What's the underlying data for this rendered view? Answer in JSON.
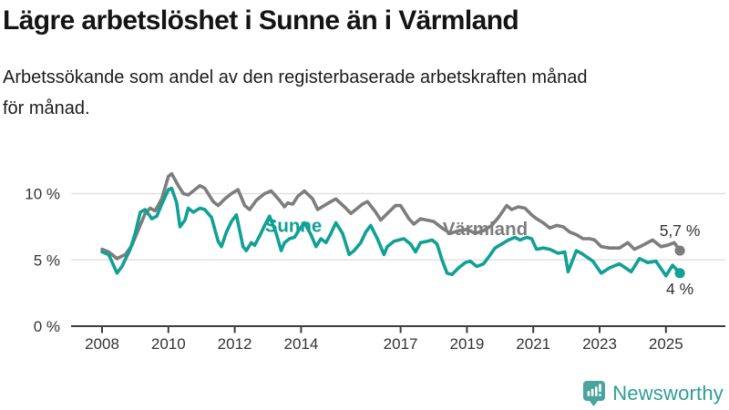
{
  "header": {
    "title": "Lägre arbetslöshet i Sunne än i Värmland",
    "subtitle_lines": [
      "Arbetssökande som andel av den registerbaserade arbetskraften månad",
      "för månad."
    ]
  },
  "footer": {
    "brand": "Newsworthy",
    "logo_icon": "bar-chart-speech-bubble-icon"
  },
  "colors": {
    "sunne": "#10a096",
    "varmland": "#7d7d7d",
    "grid": "#e1e1e1",
    "axis": "#3d3d3d",
    "tick_text": "#333333",
    "end_label_text": "#333333",
    "brand_teal": "#2d9e97",
    "brand_icon": "#4aa49c"
  },
  "chart_data": {
    "type": "line",
    "title": "Lägre arbetslöshet i Sunne än i Värmland",
    "subtitle": "Arbetssökande som andel av den registerbaserade arbetskraften månad för månad.",
    "grid": true,
    "legend_position": "inline-labels",
    "x_axis": {
      "ticks": [
        2008,
        2010,
        2012,
        2014,
        2017,
        2019,
        2021,
        2023,
        2025
      ],
      "range": [
        2007.1,
        2026.8
      ]
    },
    "y_axis": {
      "unit": "%",
      "ticks": [
        {
          "v": 0,
          "label": "0 %"
        },
        {
          "v": 5,
          "label": "5 %"
        },
        {
          "v": 10,
          "label": "10 %"
        }
      ],
      "range": [
        0,
        13.6
      ]
    },
    "series": [
      {
        "name": "Värmland",
        "color": "#7d7d7d",
        "end_label": "5,7 %",
        "end_value": 5.7,
        "label_anchor": {
          "x": 2019.55,
          "y": 7.35
        },
        "points": [
          [
            2008.0,
            5.8
          ],
          [
            2008.2,
            5.6
          ],
          [
            2008.45,
            5.1
          ],
          [
            2008.7,
            5.4
          ],
          [
            2008.9,
            6.1
          ],
          [
            2009.1,
            7.3
          ],
          [
            2009.3,
            8.5
          ],
          [
            2009.45,
            8.9
          ],
          [
            2009.6,
            8.7
          ],
          [
            2009.8,
            9.6
          ],
          [
            2010.0,
            11.3
          ],
          [
            2010.1,
            11.5
          ],
          [
            2010.3,
            10.6
          ],
          [
            2010.45,
            10.0
          ],
          [
            2010.6,
            9.9
          ],
          [
            2010.8,
            10.3
          ],
          [
            2010.95,
            10.6
          ],
          [
            2011.1,
            10.4
          ],
          [
            2011.35,
            9.4
          ],
          [
            2011.5,
            9.1
          ],
          [
            2011.7,
            9.6
          ],
          [
            2011.9,
            10.0
          ],
          [
            2012.1,
            10.3
          ],
          [
            2012.3,
            9.1
          ],
          [
            2012.45,
            8.8
          ],
          [
            2012.65,
            9.5
          ],
          [
            2012.9,
            10.0
          ],
          [
            2013.1,
            10.2
          ],
          [
            2013.35,
            9.5
          ],
          [
            2013.5,
            9.0
          ],
          [
            2013.6,
            9.3
          ],
          [
            2013.75,
            9.2
          ],
          [
            2013.9,
            9.8
          ],
          [
            2014.1,
            10.2
          ],
          [
            2014.35,
            9.6
          ],
          [
            2014.5,
            8.8
          ],
          [
            2014.7,
            9.1
          ],
          [
            2014.9,
            9.4
          ],
          [
            2015.05,
            9.6
          ],
          [
            2015.35,
            8.9
          ],
          [
            2015.5,
            8.5
          ],
          [
            2015.7,
            8.9
          ],
          [
            2015.85,
            9.2
          ],
          [
            2016.0,
            9.4
          ],
          [
            2016.25,
            8.6
          ],
          [
            2016.4,
            8.0
          ],
          [
            2016.6,
            8.5
          ],
          [
            2016.85,
            9.1
          ],
          [
            2017.0,
            9.1
          ],
          [
            2017.25,
            8.1
          ],
          [
            2017.4,
            7.7
          ],
          [
            2017.6,
            8.1
          ],
          [
            2017.8,
            8.0
          ],
          [
            2018.0,
            7.9
          ],
          [
            2018.25,
            7.4
          ],
          [
            2018.5,
            7.0
          ],
          [
            2018.75,
            7.2
          ],
          [
            2019.0,
            7.3
          ],
          [
            2019.25,
            7.0
          ],
          [
            2019.5,
            7.2
          ],
          [
            2019.75,
            7.6
          ],
          [
            2019.95,
            8.2
          ],
          [
            2020.2,
            9.1
          ],
          [
            2020.35,
            8.8
          ],
          [
            2020.55,
            9.0
          ],
          [
            2020.75,
            8.9
          ],
          [
            2020.95,
            8.4
          ],
          [
            2021.1,
            8.1
          ],
          [
            2021.3,
            7.8
          ],
          [
            2021.5,
            7.4
          ],
          [
            2021.7,
            7.6
          ],
          [
            2021.9,
            7.5
          ],
          [
            2022.1,
            7.1
          ],
          [
            2022.3,
            6.9
          ],
          [
            2022.5,
            6.6
          ],
          [
            2022.7,
            6.6
          ],
          [
            2022.85,
            6.5
          ],
          [
            2023.05,
            6.0
          ],
          [
            2023.3,
            5.9
          ],
          [
            2023.6,
            5.9
          ],
          [
            2023.85,
            6.3
          ],
          [
            2024.05,
            5.8
          ],
          [
            2024.3,
            6.1
          ],
          [
            2024.6,
            6.5
          ],
          [
            2024.85,
            6.0
          ],
          [
            2025.05,
            6.1
          ],
          [
            2025.25,
            6.3
          ],
          [
            2025.42,
            5.7
          ]
        ]
      },
      {
        "name": "Sunne",
        "color": "#10a096",
        "end_label": "4 %",
        "end_value": 4.0,
        "label_anchor": {
          "x": 2013.77,
          "y": 7.6
        },
        "points": [
          [
            2008.0,
            5.6
          ],
          [
            2008.2,
            5.4
          ],
          [
            2008.45,
            4.0
          ],
          [
            2008.6,
            4.5
          ],
          [
            2008.85,
            5.8
          ],
          [
            2009.0,
            7.0
          ],
          [
            2009.15,
            8.6
          ],
          [
            2009.3,
            8.8
          ],
          [
            2009.5,
            8.1
          ],
          [
            2009.65,
            8.3
          ],
          [
            2009.8,
            9.2
          ],
          [
            2010.0,
            10.3
          ],
          [
            2010.1,
            10.4
          ],
          [
            2010.25,
            9.3
          ],
          [
            2010.35,
            7.5
          ],
          [
            2010.5,
            8.0
          ],
          [
            2010.6,
            8.9
          ],
          [
            2010.75,
            8.6
          ],
          [
            2010.95,
            8.9
          ],
          [
            2011.1,
            8.8
          ],
          [
            2011.3,
            8.2
          ],
          [
            2011.5,
            6.4
          ],
          [
            2011.6,
            6.0
          ],
          [
            2011.75,
            7.1
          ],
          [
            2011.9,
            7.9
          ],
          [
            2012.05,
            8.4
          ],
          [
            2012.25,
            6.0
          ],
          [
            2012.35,
            5.7
          ],
          [
            2012.5,
            6.3
          ],
          [
            2012.6,
            6.1
          ],
          [
            2012.75,
            6.8
          ],
          [
            2012.9,
            7.6
          ],
          [
            2013.05,
            8.3
          ],
          [
            2013.25,
            7.0
          ],
          [
            2013.4,
            5.7
          ],
          [
            2013.5,
            6.3
          ],
          [
            2013.65,
            6.6
          ],
          [
            2013.8,
            6.7
          ],
          [
            2013.95,
            7.3
          ],
          [
            2014.1,
            7.8
          ],
          [
            2014.3,
            6.9
          ],
          [
            2014.45,
            6.0
          ],
          [
            2014.6,
            6.6
          ],
          [
            2014.75,
            6.3
          ],
          [
            2014.9,
            7.0
          ],
          [
            2015.05,
            7.8
          ],
          [
            2015.25,
            7.0
          ],
          [
            2015.45,
            5.4
          ],
          [
            2015.6,
            5.7
          ],
          [
            2015.8,
            6.3
          ],
          [
            2015.95,
            7.1
          ],
          [
            2016.1,
            7.6
          ],
          [
            2016.3,
            6.6
          ],
          [
            2016.5,
            5.4
          ],
          [
            2016.6,
            6.0
          ],
          [
            2016.8,
            6.4
          ],
          [
            2016.95,
            6.5
          ],
          [
            2017.1,
            6.6
          ],
          [
            2017.3,
            6.2
          ],
          [
            2017.45,
            5.6
          ],
          [
            2017.6,
            6.3
          ],
          [
            2017.8,
            6.4
          ],
          [
            2017.95,
            6.5
          ],
          [
            2018.1,
            6.2
          ],
          [
            2018.25,
            5.0
          ],
          [
            2018.4,
            4.0
          ],
          [
            2018.55,
            3.9
          ],
          [
            2018.75,
            4.4
          ],
          [
            2018.95,
            4.8
          ],
          [
            2019.1,
            4.9
          ],
          [
            2019.3,
            4.5
          ],
          [
            2019.5,
            4.7
          ],
          [
            2019.65,
            5.2
          ],
          [
            2019.85,
            5.9
          ],
          [
            2020.05,
            6.2
          ],
          [
            2020.25,
            6.5
          ],
          [
            2020.45,
            6.7
          ],
          [
            2020.6,
            6.5
          ],
          [
            2020.8,
            6.7
          ],
          [
            2020.95,
            6.6
          ],
          [
            2021.1,
            5.8
          ],
          [
            2021.3,
            5.9
          ],
          [
            2021.5,
            5.8
          ],
          [
            2021.75,
            5.5
          ],
          [
            2021.95,
            5.6
          ],
          [
            2022.05,
            4.1
          ],
          [
            2022.3,
            5.7
          ],
          [
            2022.45,
            5.5
          ],
          [
            2022.8,
            4.9
          ],
          [
            2023.05,
            4.0
          ],
          [
            2023.3,
            4.4
          ],
          [
            2023.6,
            4.7
          ],
          [
            2023.95,
            4.1
          ],
          [
            2024.2,
            5.1
          ],
          [
            2024.45,
            4.8
          ],
          [
            2024.7,
            4.9
          ],
          [
            2025.0,
            3.8
          ],
          [
            2025.2,
            4.6
          ],
          [
            2025.42,
            4.0
          ]
        ]
      }
    ]
  }
}
